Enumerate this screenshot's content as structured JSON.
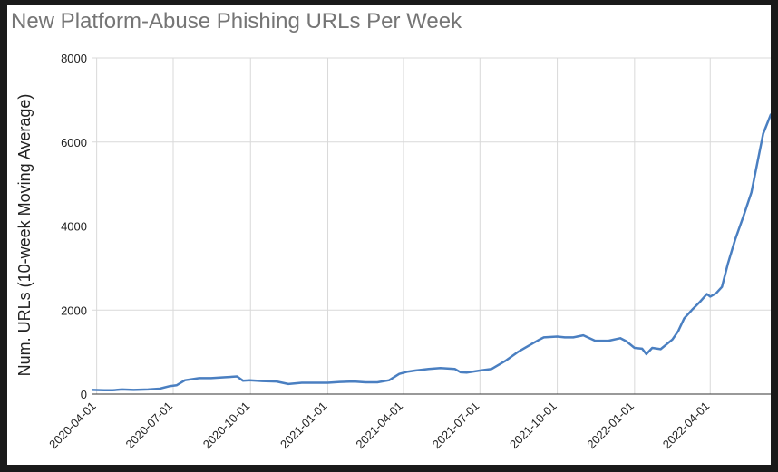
{
  "chart_data": {
    "type": "line",
    "title": "New Platform-Abuse Phishing URLs Per Week",
    "xlabel": "",
    "ylabel": "Num. URLs (10-week Moving Average)",
    "ylim": [
      0,
      8000
    ],
    "yticks": [
      0,
      2000,
      4000,
      6000,
      8000
    ],
    "xticks": [
      "2020-04-01",
      "2020-07-01",
      "2020-10-01",
      "2021-01-01",
      "2021-04-01",
      "2021-07-01",
      "2021-10-01",
      "2022-01-01",
      "2022-04-01"
    ],
    "xlim": [
      "2020-03-27",
      "2022-06-12"
    ],
    "grid": true,
    "series": [
      {
        "name": "",
        "color": "#4a7fc1",
        "x": [
          "2020-03-27",
          "2020-04-10",
          "2020-04-20",
          "2020-05-01",
          "2020-05-15",
          "2020-06-01",
          "2020-06-15",
          "2020-06-27",
          "2020-07-01",
          "2020-07-05",
          "2020-07-15",
          "2020-08-01",
          "2020-08-15",
          "2020-09-01",
          "2020-09-15",
          "2020-09-22",
          "2020-09-30",
          "2020-10-15",
          "2020-11-01",
          "2020-11-15",
          "2020-12-01",
          "2020-12-08",
          "2020-12-20",
          "2021-01-01",
          "2021-01-15",
          "2021-02-01",
          "2021-02-15",
          "2021-03-01",
          "2021-03-15",
          "2021-03-27",
          "2021-04-05",
          "2021-04-15",
          "2021-05-01",
          "2021-05-15",
          "2021-06-01",
          "2021-06-08",
          "2021-06-15",
          "2021-07-01",
          "2021-07-15",
          "2021-08-01",
          "2021-08-15",
          "2021-09-01",
          "2021-09-10",
          "2021-09-15",
          "2021-10-01",
          "2021-10-10",
          "2021-10-20",
          "2021-11-01",
          "2021-11-15",
          "2021-12-01",
          "2021-12-15",
          "2021-12-22",
          "2022-01-01",
          "2022-01-10",
          "2022-01-15",
          "2022-01-22",
          "2022-02-01",
          "2022-02-15",
          "2022-02-22",
          "2022-03-01",
          "2022-03-10",
          "2022-03-20",
          "2022-03-28",
          "2022-04-01",
          "2022-04-08",
          "2022-04-15",
          "2022-04-22",
          "2022-05-01",
          "2022-05-10",
          "2022-05-20",
          "2022-05-27",
          "2022-06-03",
          "2022-06-12"
        ],
        "values": [
          100,
          90,
          90,
          110,
          100,
          110,
          130,
          190,
          200,
          210,
          330,
          380,
          380,
          400,
          420,
          320,
          330,
          310,
          300,
          240,
          270,
          270,
          270,
          270,
          290,
          300,
          280,
          280,
          330,
          480,
          530,
          560,
          600,
          620,
          600,
          520,
          510,
          560,
          600,
          800,
          1000,
          1200,
          1300,
          1350,
          1370,
          1350,
          1350,
          1400,
          1270,
          1270,
          1330,
          1260,
          1100,
          1080,
          950,
          1100,
          1070,
          1300,
          1500,
          1800,
          2000,
          2200,
          2380,
          2320,
          2400,
          2550,
          3100,
          3700,
          4200,
          4800,
          5500,
          6200,
          6650
        ]
      }
    ]
  }
}
